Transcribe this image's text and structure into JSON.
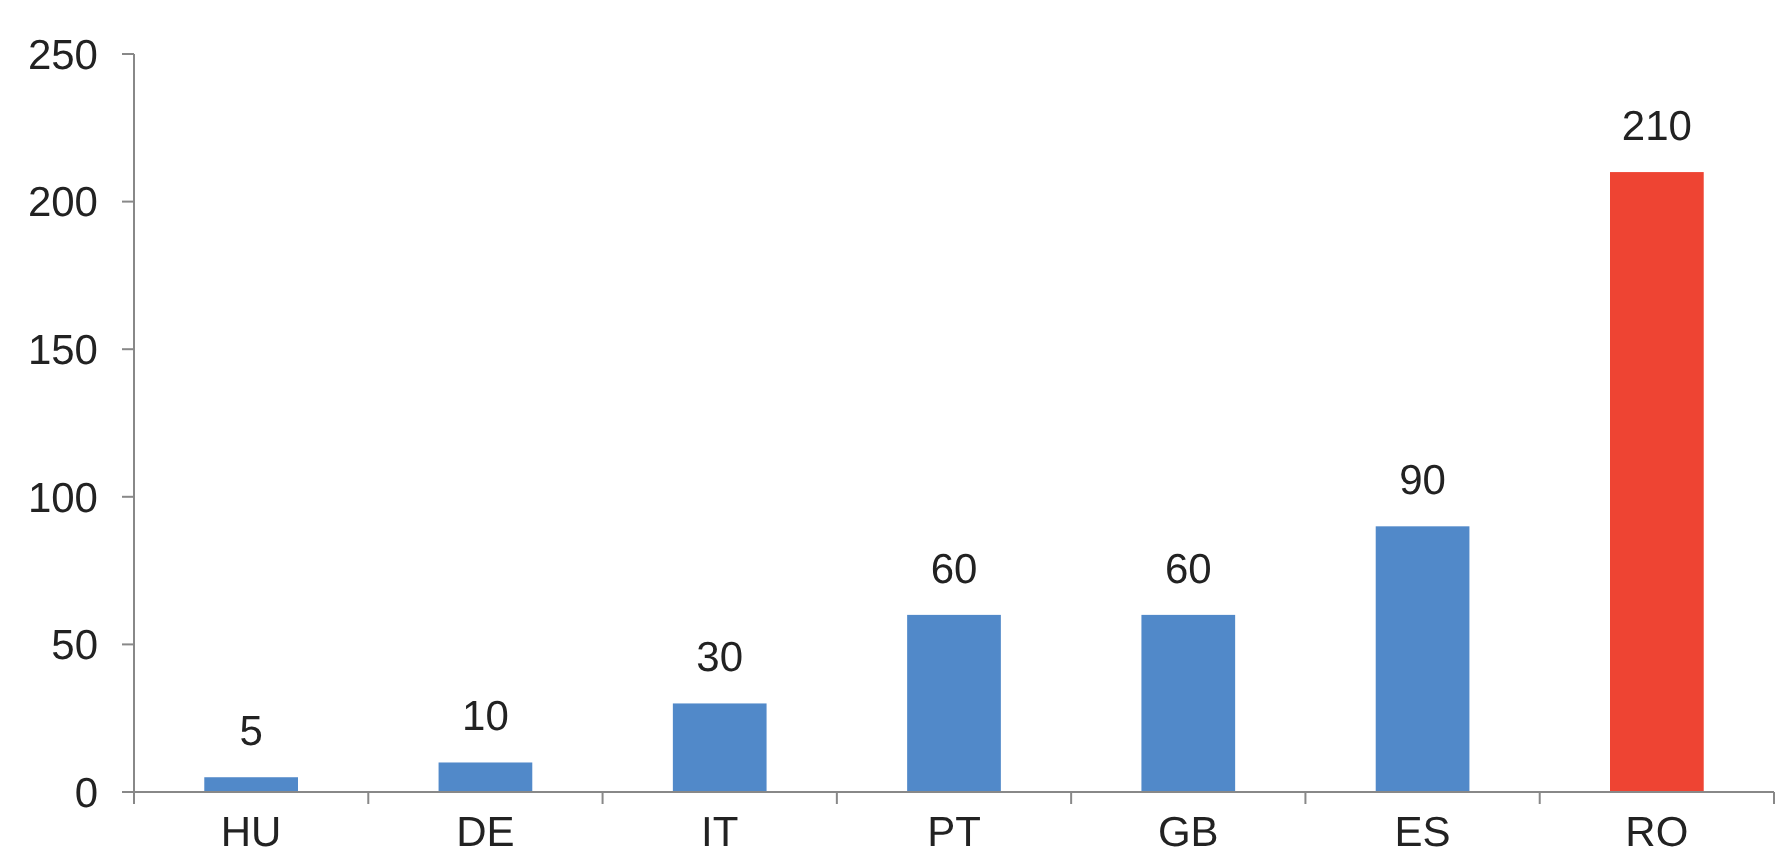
{
  "chart_data": {
    "type": "bar",
    "categories": [
      "HU",
      "DE",
      "IT",
      "PT",
      "GB",
      "ES",
      "RO"
    ],
    "values": [
      5,
      10,
      30,
      60,
      60,
      90,
      210
    ],
    "colors": [
      "#5189c9",
      "#5189c9",
      "#5189c9",
      "#5189c9",
      "#5189c9",
      "#5189c9",
      "#ee4433"
    ],
    "ylim": [
      0,
      250
    ],
    "yticks": [
      0,
      50,
      100,
      150,
      200,
      250
    ],
    "grid": false,
    "data_labels": true
  }
}
